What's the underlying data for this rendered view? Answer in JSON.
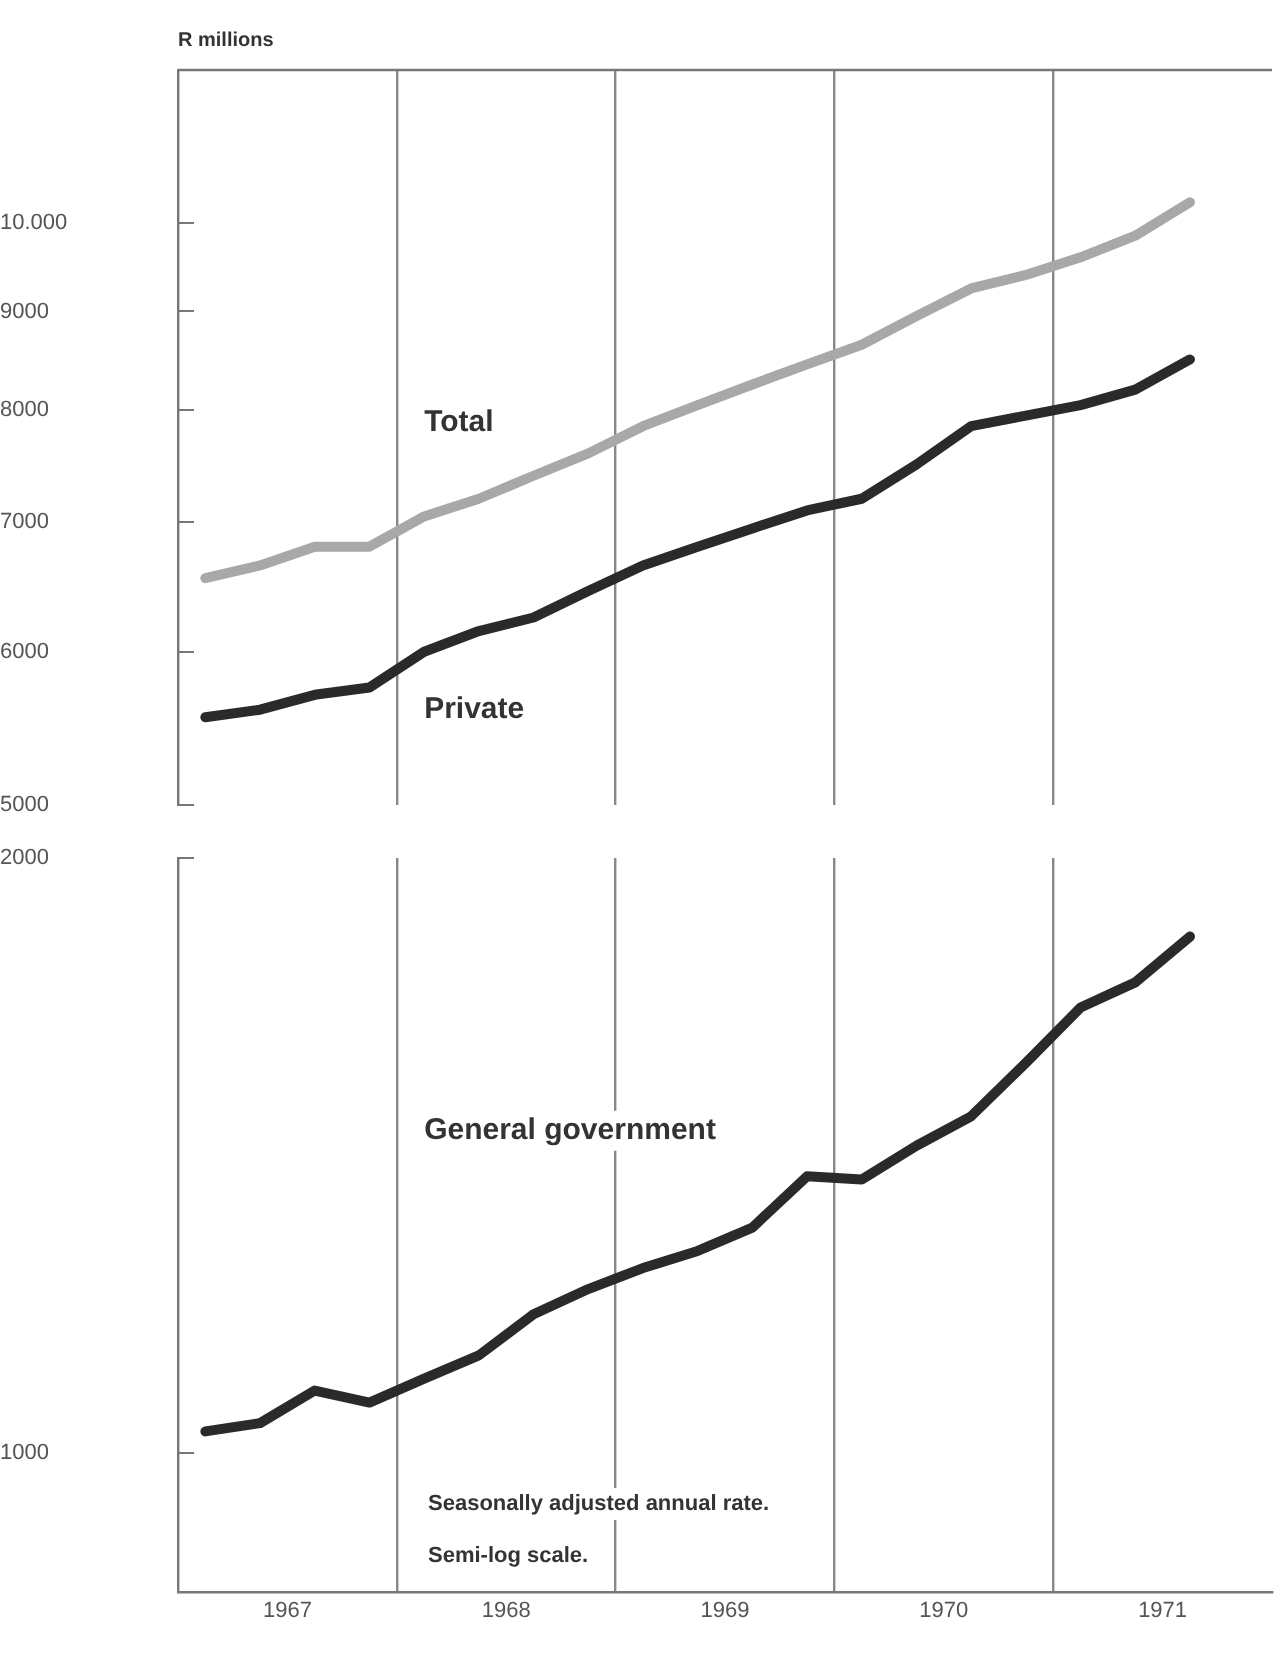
{
  "chart_data": [
    {
      "type": "line",
      "ylabel": "R millions",
      "log": true,
      "grid": "x",
      "tick_labels": "y",
      "marker": "none",
      "x": [
        1967.125,
        1967.375,
        1967.625,
        1967.875,
        1968.125,
        1968.375,
        1968.625,
        1968.875,
        1969.125,
        1969.375,
        1969.625,
        1969.875,
        1970.125,
        1970.375,
        1970.625,
        1970.875,
        1971.125,
        1971.375,
        1971.625
      ],
      "xlim": [
        1967,
        1972
      ],
      "xticks": [
        {
          "value": 1968,
          "label": null
        },
        {
          "value": 1969,
          "label": null
        },
        {
          "value": 1970,
          "label": null
        },
        {
          "value": 1971,
          "label": null
        }
      ],
      "ylim": [
        5000,
        12000
      ],
      "yticks": [
        5000,
        6000,
        7000,
        8000,
        9000,
        {
          "value": 10000,
          "label": "10.000"
        }
      ],
      "series": [
        {
          "name": "Total",
          "color": "#a8a8a8",
          "values": [
            6550,
            6650,
            6800,
            6800,
            7050,
            7200,
            7400,
            7600,
            7850,
            8050,
            8250,
            8450,
            8650,
            8950,
            9250,
            9400,
            9600,
            9850,
            10250
          ]
        },
        {
          "name": "Private",
          "color": "#2a2a2a",
          "values": [
            5550,
            5600,
            5700,
            5750,
            6000,
            6150,
            6250,
            6450,
            6650,
            6800,
            6950,
            7100,
            7200,
            7500,
            7850,
            7950,
            8050,
            8200,
            8500
          ]
        }
      ]
    },
    {
      "type": "line",
      "log": true,
      "grid": "x",
      "marker": "none",
      "x": [
        1967.125,
        1967.375,
        1967.625,
        1967.875,
        1968.125,
        1968.375,
        1968.625,
        1968.875,
        1969.125,
        1969.375,
        1969.625,
        1969.875,
        1970.125,
        1970.375,
        1970.625,
        1970.875,
        1971.125,
        1971.375,
        1971.625
      ],
      "xlim": [
        1967,
        1972
      ],
      "xticks": [
        {
          "value": 1967.5,
          "label": "1967"
        },
        {
          "value": 1968,
          "label": null
        },
        {
          "value": 1968.5,
          "label": "1968"
        },
        {
          "value": 1969,
          "label": null
        },
        {
          "value": 1969.5,
          "label": "1969"
        },
        {
          "value": 1970,
          "label": null
        },
        {
          "value": 1970.5,
          "label": "1970"
        },
        {
          "value": 1971,
          "label": null
        },
        {
          "value": 1971.5,
          "label": "1971"
        }
      ],
      "ylim": [
        850,
        2000
      ],
      "yticks": [
        1000,
        2000
      ],
      "annotations": [
        "Seasonally adjusted annual rate.",
        "Semi-log scale."
      ],
      "series": [
        {
          "name": "General government",
          "color": "#2a2a2a",
          "values": [
            1025,
            1035,
            1075,
            1060,
            1090,
            1120,
            1175,
            1210,
            1240,
            1265,
            1300,
            1380,
            1375,
            1430,
            1480,
            1575,
            1680,
            1730,
            1825
          ]
        }
      ]
    }
  ]
}
